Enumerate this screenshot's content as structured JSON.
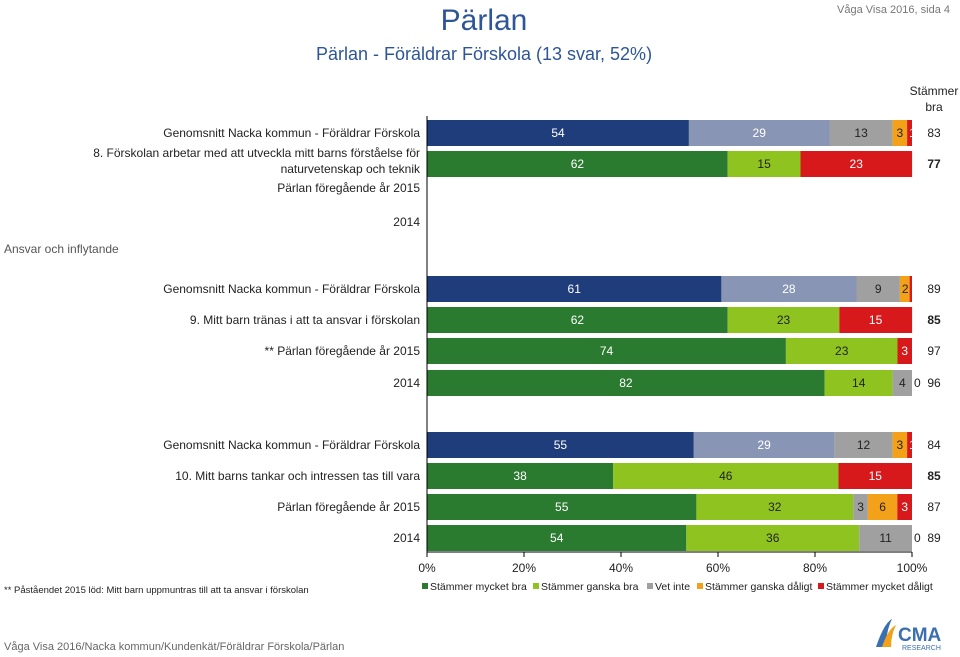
{
  "header": {
    "title": "Pärlan",
    "subtitle": "Pärlan - Föräldrar Förskola (13 svar, 52%)",
    "page_ref": "Våga Visa 2016, sida 4"
  },
  "footer": {
    "path": "Våga Visa 2016/Nacka kommun/Kundenkät/Föräldrar Förskola/Pärlan",
    "footnote": "** Påståendet 2015 löd: Mitt barn uppmuntras till att ta ansvar i förskolan",
    "logo_text": "CMA",
    "logo_subtext": "RESEARCH"
  },
  "chart_data": {
    "type": "bar",
    "orientation": "horizontal",
    "stacked": true,
    "x_ticks": [
      "0%",
      "20%",
      "40%",
      "60%",
      "80%",
      "100%"
    ],
    "right_column_header": "Stämmer bra",
    "section_label": "Ansvar och inflytande",
    "legend_position": "bottom",
    "series": [
      {
        "name": "Stämmer mycket bra",
        "color": "#2a7a2f"
      },
      {
        "name": "Stämmer ganska bra",
        "color": "#8fc31f"
      },
      {
        "name": "Vet inte",
        "color": "#a0a0a0"
      },
      {
        "name": "Stämmer ganska dåligt",
        "color": "#f4a11a"
      },
      {
        "name": "Stämmer mycket dåligt",
        "color": "#d7191c"
      }
    ],
    "nacka_colors": [
      "#1f3d7a",
      "#8995b4",
      "#a0a0a0",
      "#f4a11a",
      "#d7191c"
    ],
    "groups": [
      {
        "question": "8. Förskolan arbetar med att utveckla mitt barns förståelse för naturvetenskap och teknik",
        "question_lines": [
          "8. Förskolan arbetar med att utveckla mitt barns förståelse för",
          "naturvetenskap och teknik"
        ],
        "rows": [
          {
            "label": "Genomsnitt Nacka kommun - Föräldrar Förskola",
            "nacka": true,
            "values": [
              54,
              29,
              13,
              3,
              1
            ],
            "labels": [
              "54",
              "29",
              "13",
              "3",
              "1"
            ],
            "total": "83"
          },
          {
            "label": "",
            "values": [
              62,
              15,
              0,
              0,
              23
            ],
            "labels": [
              "62",
              "15",
              "0",
              "",
              "23"
            ],
            "total": "77",
            "bold": true
          },
          {
            "label": "Pärlan föregående år 2015",
            "values": null
          },
          {
            "label": "2014",
            "values": null
          }
        ]
      },
      {
        "question": "9. Mitt barn tränas i att ta ansvar i förskolan",
        "rows": [
          {
            "label": "Genomsnitt Nacka kommun - Föräldrar Förskola",
            "nacka": true,
            "values": [
              61,
              28,
              9,
              2,
              0.5
            ],
            "labels": [
              "61",
              "28",
              "9",
              "2",
              "0"
            ],
            "total": "89"
          },
          {
            "label": "9. Mitt barn tränas i att ta ansvar i förskolan",
            "values": [
              62,
              23,
              0,
              0,
              15
            ],
            "labels": [
              "62",
              "23",
              "0",
              "",
              "15"
            ],
            "total": "85",
            "bold": true
          },
          {
            "label": "** Pärlan föregående år 2015",
            "values": [
              74,
              23,
              0,
              0,
              3
            ],
            "labels": [
              "74",
              "23",
              "0",
              "",
              "3"
            ],
            "total": "97"
          },
          {
            "label": "2014",
            "values": [
              82,
              14,
              4,
              0,
              0
            ],
            "labels": [
              "82",
              "14",
              "4",
              "0",
              ""
            ],
            "total": "96"
          }
        ]
      },
      {
        "question": "10. Mitt barns tankar och intressen tas till vara",
        "rows": [
          {
            "label": "Genomsnitt Nacka kommun - Föräldrar Förskola",
            "nacka": true,
            "values": [
              55,
              29,
              12,
              3,
              1
            ],
            "labels": [
              "55",
              "29",
              "12",
              "3",
              "1"
            ],
            "total": "84"
          },
          {
            "label": "10. Mitt barns tankar och intressen tas till vara",
            "values": [
              38,
              46,
              0,
              0,
              15
            ],
            "labels": [
              "38",
              "46",
              "0",
              "",
              "15"
            ],
            "total": "85",
            "bold": true
          },
          {
            "label": "Pärlan föregående år 2015",
            "values": [
              55,
              32,
              3,
              6,
              3
            ],
            "labels": [
              "55",
              "32",
              "3",
              "6",
              "3"
            ],
            "total": "87"
          },
          {
            "label": "2014",
            "values": [
              54,
              36,
              11,
              0,
              0
            ],
            "labels": [
              "54",
              "36",
              "11",
              "0",
              ""
            ],
            "total": "89"
          }
        ]
      }
    ]
  }
}
